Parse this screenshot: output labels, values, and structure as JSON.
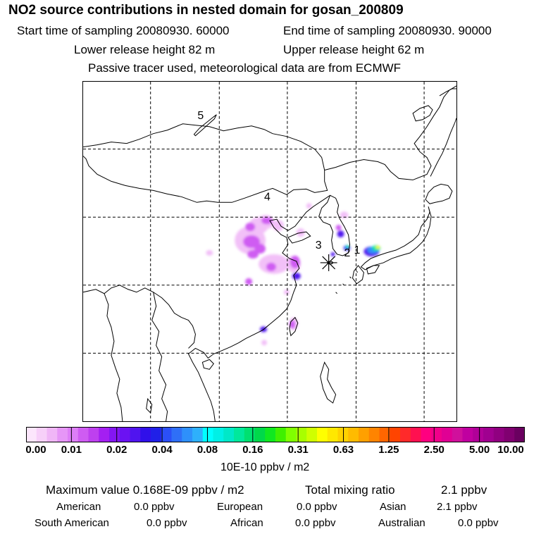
{
  "title": "NO2 source contributions in nested domain for gosan_200809",
  "header": {
    "start_label": "Start time of sampling 20080930. 60000",
    "end_label": "End time of sampling 20080930. 90000",
    "lower_label": "Lower release height   82 m",
    "upper_label": "Upper release height   62 m",
    "tracer_label": "Passive tracer used, meteorological data are from ECMWF"
  },
  "map": {
    "region_labels": [
      "5",
      "4",
      "3",
      "2",
      "1"
    ],
    "receptor_symbol": "asterisk",
    "coastline_color": "#000000",
    "grid_style": "dashed"
  },
  "colorbar": {
    "tick_labels": [
      "0.00",
      "0.01",
      "0.02",
      "0.04",
      "0.08",
      "0.16",
      "0.31",
      "0.63",
      "1.25",
      "2.50",
      "5.00",
      "10.00"
    ],
    "colors": [
      "#fce6fc",
      "#f7d0f9",
      "#f0b6f7",
      "#e696f7",
      "#dd7ef7",
      "#cf5cf2",
      "#be40ef",
      "#a41ff2",
      "#8416f2",
      "#6b12f2",
      "#5014ef",
      "#3010ea",
      "#2020e8",
      "#2b4ff7",
      "#2f6ff7",
      "#2e90fb",
      "#2eb0fb",
      "#00ffff",
      "#00f0e6",
      "#00e8c8",
      "#00e89c",
      "#00e070",
      "#00d84a",
      "#10e820",
      "#40f000",
      "#80ff00",
      "#a8ff00",
      "#d0ff00",
      "#ffff00",
      "#ffe800",
      "#ffd200",
      "#ffbb00",
      "#ffa000",
      "#ff8400",
      "#ff6600",
      "#ff4400",
      "#ff2a2a",
      "#ff1050",
      "#ff0080",
      "#f0008a",
      "#e00094",
      "#d0109c",
      "#c000a0",
      "#b00098",
      "#a00090",
      "#900080",
      "#800070",
      "#6a0060"
    ],
    "unit": "10E-10 ppbv / m2"
  },
  "summary": {
    "max_label": "Maximum value  0.168E-09 ppbv / m2",
    "total_label": "Total mixing ratio",
    "total_value": "2.1 ppbv"
  },
  "regions": [
    {
      "name": "American",
      "value": "0.0 ppbv"
    },
    {
      "name": "European",
      "value": "0.0 ppbv"
    },
    {
      "name": "Asian",
      "value": "2.1 ppbv"
    },
    {
      "name": "South American",
      "value": "0.0 ppbv"
    },
    {
      "name": "African",
      "value": "0.0 ppbv"
    },
    {
      "name": "Australian",
      "value": "0.0 ppbv"
    }
  ]
}
